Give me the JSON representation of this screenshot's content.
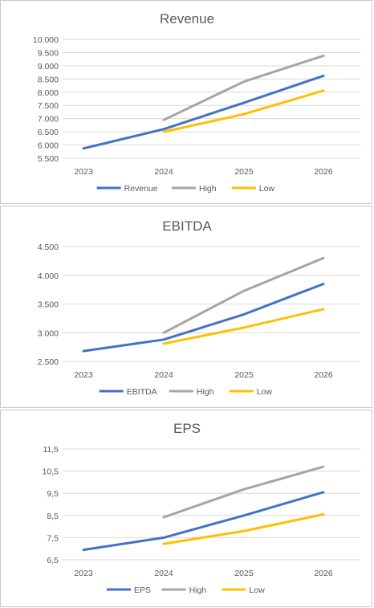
{
  "colors": {
    "actual": "#4472C4",
    "high": "#A5A5A5",
    "low": "#FFC000",
    "grid": "#d9d9d9",
    "text": "#595959"
  },
  "chart_data": [
    {
      "type": "line",
      "title": "Revenue",
      "categories": [
        "2023",
        "2024",
        "2025",
        "2026"
      ],
      "ylim": [
        5500,
        10000
      ],
      "yticks": [
        5500,
        6000,
        6500,
        7000,
        7500,
        8000,
        8500,
        9000,
        9500,
        10000
      ],
      "ytick_labels": [
        "5.500",
        "6.000",
        "6.500",
        "7.000",
        "7.500",
        "8.000",
        "8.500",
        "9.000",
        "9.500",
        "10.000"
      ],
      "grid": true,
      "legend": "bottom",
      "series": [
        {
          "name": "Revenue",
          "color": "#4472C4",
          "values": [
            5870,
            6600,
            7600,
            8620
          ]
        },
        {
          "name": "High",
          "color": "#A5A5A5",
          "values": [
            null,
            6950,
            8400,
            9380
          ]
        },
        {
          "name": "Low",
          "color": "#FFC000",
          "values": [
            null,
            6500,
            7170,
            8060
          ]
        }
      ]
    },
    {
      "type": "line",
      "title": "EBITDA",
      "categories": [
        "2023",
        "2024",
        "2025",
        "2026"
      ],
      "ylim": [
        2500,
        4500
      ],
      "yticks": [
        2500,
        3000,
        3500,
        4000,
        4500
      ],
      "ytick_labels": [
        "2.500",
        "3.000",
        "3.500",
        "4.000",
        "4.500"
      ],
      "grid": true,
      "legend": "bottom",
      "series": [
        {
          "name": "EBITDA",
          "color": "#4472C4",
          "values": [
            2680,
            2880,
            3320,
            3850
          ]
        },
        {
          "name": "High",
          "color": "#A5A5A5",
          "values": [
            null,
            3000,
            3730,
            4300
          ]
        },
        {
          "name": "Low",
          "color": "#FFC000",
          "values": [
            null,
            2810,
            3090,
            3410
          ]
        }
      ]
    },
    {
      "type": "line",
      "title": "EPS",
      "categories": [
        "2023",
        "2024",
        "2025",
        "2026"
      ],
      "ylim": [
        6.5,
        11.5
      ],
      "yticks": [
        6.5,
        7.5,
        8.5,
        9.5,
        10.5,
        11.5
      ],
      "ytick_labels": [
        "6,5",
        "7,5",
        "8,5",
        "9,5",
        "10,5",
        "11,5"
      ],
      "grid": true,
      "legend": "bottom",
      "series": [
        {
          "name": "EPS",
          "color": "#4472C4",
          "values": [
            6.95,
            7.5,
            8.5,
            9.55
          ]
        },
        {
          "name": "High",
          "color": "#A5A5A5",
          "values": [
            null,
            8.42,
            9.68,
            10.7
          ]
        },
        {
          "name": "Low",
          "color": "#FFC000",
          "values": [
            null,
            7.22,
            7.8,
            8.55
          ]
        }
      ]
    }
  ]
}
